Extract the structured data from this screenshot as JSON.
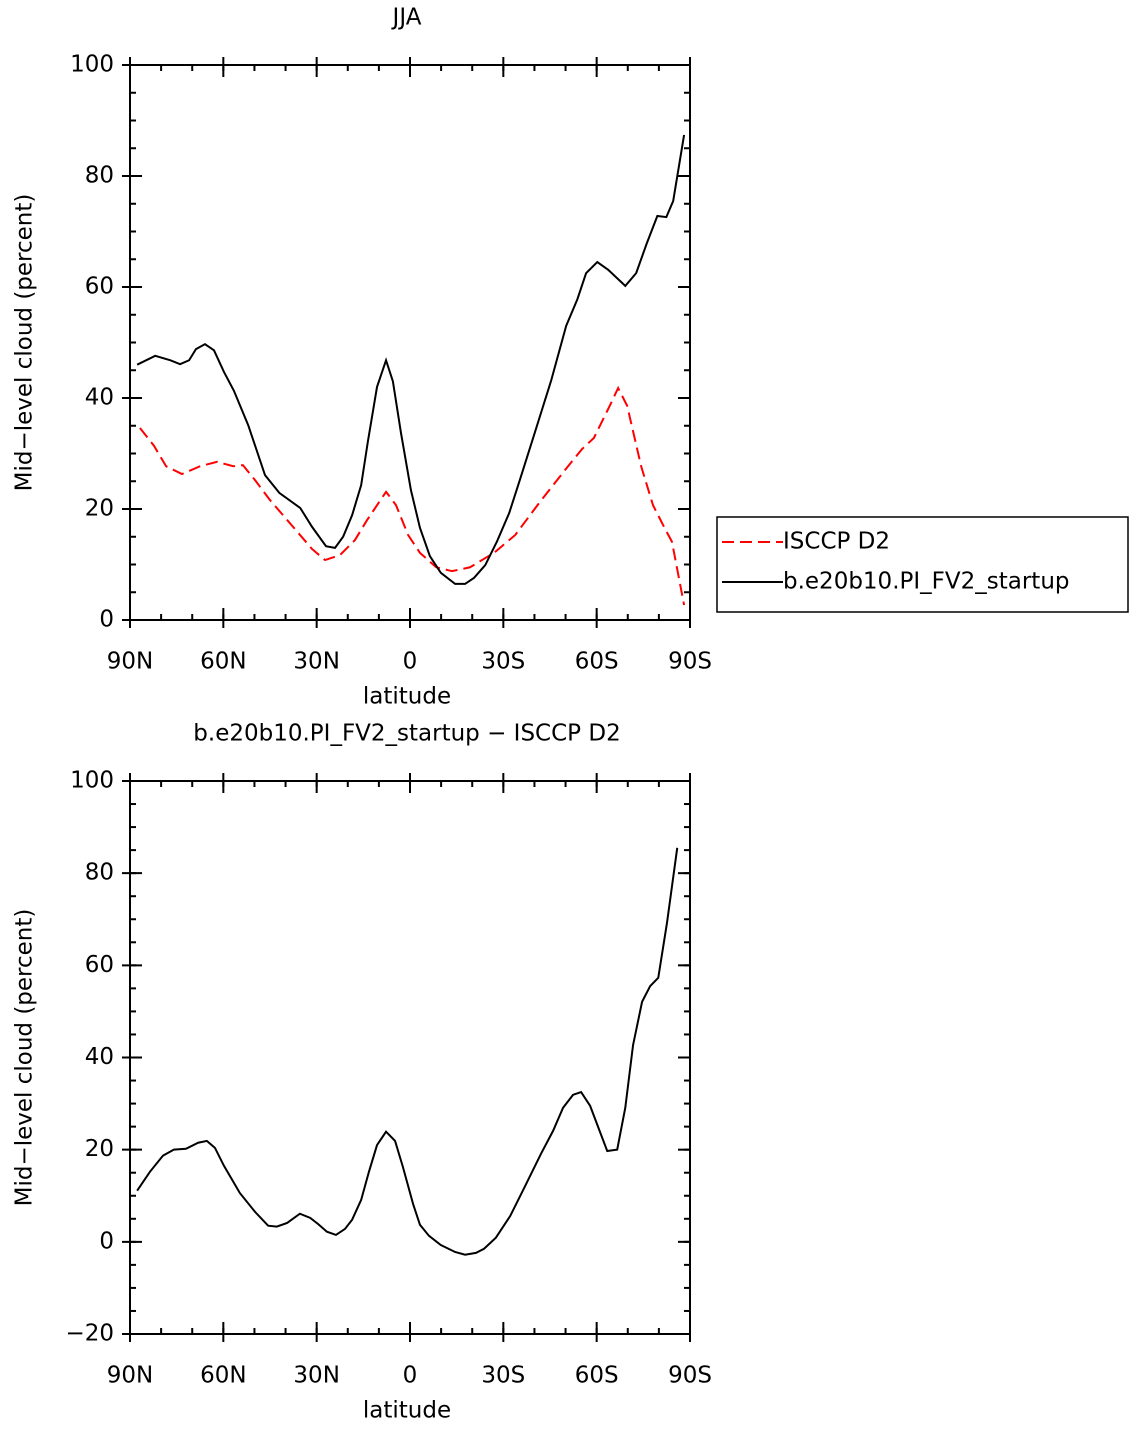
{
  "chart_data": [
    {
      "type": "line",
      "title": "JJA",
      "xlabel": "latitude",
      "ylabel": "Mid−level cloud (percent)",
      "xlim": [
        90,
        -90
      ],
      "ylim": [
        0,
        100
      ],
      "xticks": [
        {
          "value": 90,
          "label": "90N"
        },
        {
          "value": 60,
          "label": "60N"
        },
        {
          "value": 30,
          "label": "30N"
        },
        0,
        {
          "value": -30,
          "label": "30S"
        },
        {
          "value": -60,
          "label": "60S"
        },
        {
          "value": -90,
          "label": "90S"
        }
      ],
      "yticks": [
        0,
        20,
        40,
        60,
        80,
        100
      ],
      "minor_ticks": {
        "x": 10,
        "y": 5
      },
      "legend": "right",
      "series": [
        {
          "name": "ISCCP D2",
          "color": "#ff0000",
          "line_style": "dashed",
          "x": [
            86.8,
            82.3,
            78.4,
            73.3,
            67.5,
            62,
            56.8,
            53.7,
            49.8,
            45,
            37,
            31.5,
            27.3,
            22.5,
            17.7,
            13.8,
            7.7,
            4.5,
            0.6,
            -3.2,
            -8.4,
            -13.5,
            -19.3,
            -27,
            -33.8,
            -41.8,
            -49.8,
            -55.3,
            -59.1,
            -64.3,
            -66.9,
            -69.8,
            -74.3,
            -78.1,
            -82,
            -84.2,
            -88.1
          ],
          "values": [
            34.6,
            31.4,
            27.7,
            26.3,
            27.7,
            28.5,
            27.7,
            27.9,
            25.2,
            21.6,
            16.4,
            12.8,
            10.8,
            11.7,
            14.4,
            18,
            23.1,
            20.7,
            15.3,
            12.1,
            9.5,
            8.8,
            9.5,
            12.1,
            15.3,
            21.3,
            27,
            30.8,
            32.8,
            38.7,
            41.8,
            38.6,
            27.7,
            20.7,
            16.4,
            14.1,
            2.7
          ]
        },
        {
          "name": "b.e20b10.PI_FV2_startup",
          "color": "#000000",
          "line_style": "solid",
          "x": [
            87.7,
            81.9,
            77,
            73.9,
            71,
            68.8,
            65.9,
            63,
            59.8,
            56.6,
            52,
            46.6,
            42,
            35.3,
            31.5,
            27,
            24.1,
            21.5,
            18.6,
            15.7,
            13.5,
            10.6,
            7.7,
            5.5,
            2.9,
            -0.3,
            -3.2,
            -6.4,
            -9.9,
            -14.5,
            -17.7,
            -20.6,
            -24.2,
            -28,
            -31.9,
            -35.4,
            -40.2,
            -45.4,
            -50.2,
            -53.8,
            -56.6,
            -60.2,
            -63.7,
            -69.2,
            -72.7,
            -76,
            -79.5,
            -82.4,
            -84.6,
            -88.1
          ],
          "values": [
            46,
            47.6,
            46.8,
            46.1,
            46.8,
            48.8,
            49.7,
            48.6,
            44.7,
            41.3,
            35.1,
            26.1,
            22.9,
            20.2,
            16.8,
            13.3,
            13,
            15,
            18.9,
            24.3,
            32.3,
            42,
            46.8,
            43,
            33.7,
            23.4,
            16.6,
            11.5,
            8.5,
            6.5,
            6.5,
            7.6,
            9.9,
            14.2,
            19.3,
            25.4,
            33.9,
            43.2,
            53,
            57.8,
            62.5,
            64.5,
            63.1,
            60.2,
            62.5,
            67.7,
            72.8,
            72.6,
            75.5,
            87.4
          ]
        }
      ]
    },
    {
      "type": "line",
      "title": "b.e20b10.PI_FV2_startup − ISCCP D2",
      "xlabel": "latitude",
      "ylabel": "Mid−level cloud (percent)",
      "xlim": [
        90,
        -90
      ],
      "ylim": [
        -20,
        100
      ],
      "xticks": [
        {
          "value": 90,
          "label": "90N"
        },
        {
          "value": 60,
          "label": "60N"
        },
        {
          "value": 30,
          "label": "30N"
        },
        0,
        {
          "value": -30,
          "label": "30S"
        },
        {
          "value": -60,
          "label": "60S"
        },
        {
          "value": -90,
          "label": "90S"
        }
      ],
      "yticks": [
        {
          "value": -20,
          "label": "−20"
        },
        0,
        20,
        40,
        60,
        80,
        100
      ],
      "minor_ticks": {
        "x": 10,
        "y": 5
      },
      "series": [
        {
          "color": "#000000",
          "line_style": "solid",
          "x": [
            87.7,
            83.6,
            79.4,
            75.9,
            72,
            68.1,
            65.3,
            62.7,
            59.8,
            54.7,
            49.8,
            45.6,
            42.8,
            39.5,
            35.4,
            32.1,
            29.6,
            26.7,
            23.8,
            20.9,
            18.6,
            15.7,
            13.2,
            10.6,
            7.7,
            4.8,
            2.3,
            -1,
            -3.2,
            -6.1,
            -9.9,
            -14.5,
            -17.7,
            -21.2,
            -23.8,
            -27.6,
            -32.2,
            -37,
            -42.1,
            -46,
            -49.2,
            -52.4,
            -55,
            -57.9,
            -63.4,
            -66.6,
            -69.2,
            -71.7,
            -74.6,
            -77.2,
            -79.8,
            -82.6,
            -85.9
          ],
          "values": [
            11.1,
            15.2,
            18.7,
            20,
            20.2,
            21.5,
            21.9,
            20.4,
            16.5,
            10.6,
            6.5,
            3.5,
            3.3,
            4.1,
            6.1,
            5.2,
            3.9,
            2.2,
            1.5,
            2.8,
            4.8,
            9.1,
            15.2,
            21,
            23.9,
            21.9,
            16.3,
            8.2,
            3.7,
            1.3,
            -0.7,
            -2.2,
            -2.8,
            -2.4,
            -1.5,
            0.9,
            5.6,
            12.1,
            19.1,
            24.1,
            29.1,
            31.9,
            32.5,
            29.5,
            19.7,
            20,
            29.1,
            42.7,
            52.1,
            55.5,
            57.3,
            69.2,
            85.5
          ]
        }
      ]
    }
  ]
}
